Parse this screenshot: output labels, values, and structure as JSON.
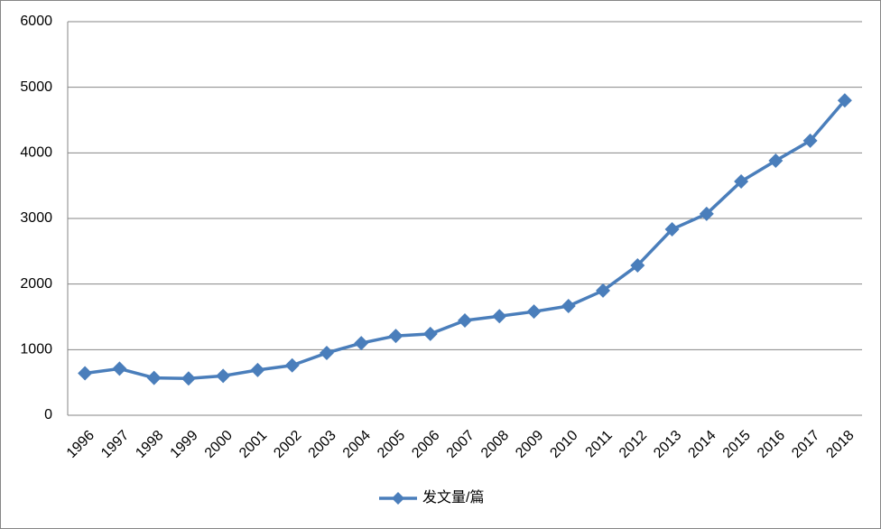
{
  "chart_data": {
    "type": "line",
    "categories": [
      "1996",
      "1997",
      "1998",
      "1999",
      "2000",
      "2001",
      "2002",
      "2003",
      "2004",
      "2005",
      "2006",
      "2007",
      "2008",
      "2009",
      "2010",
      "2011",
      "2012",
      "2013",
      "2014",
      "2015",
      "2016",
      "2017",
      "2018"
    ],
    "series": [
      {
        "name": "发文量/篇",
        "color": "#4a7ebb",
        "values": [
          640,
          710,
          570,
          560,
          600,
          690,
          760,
          950,
          1100,
          1210,
          1240,
          1445,
          1510,
          1580,
          1665,
          1900,
          2285,
          2835,
          3070,
          3565,
          3880,
          4185,
          4800
        ]
      }
    ],
    "ylim": [
      0,
      6000
    ],
    "yticks": [
      0,
      1000,
      2000,
      3000,
      4000,
      5000,
      6000
    ],
    "grid": true,
    "legend": "bottom"
  }
}
